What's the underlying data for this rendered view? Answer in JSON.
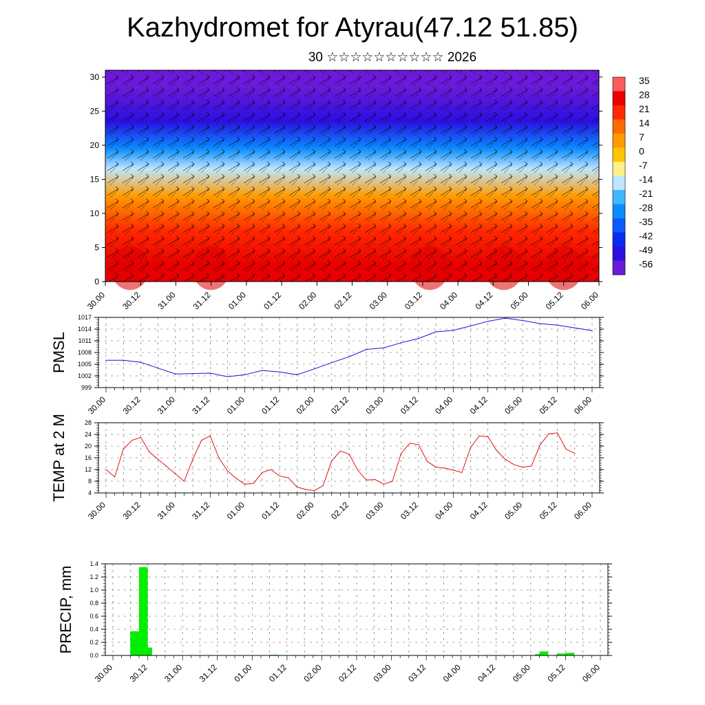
{
  "header": {
    "title": "Kazhydromet for Atyrau(47.12 51.85)",
    "subtitle": "30 ☆☆☆☆☆☆☆☆☆☆ 2026"
  },
  "time_labels": [
    "30.00",
    "30.12",
    "31.00",
    "31.12",
    "01.00",
    "01.12",
    "02.00",
    "02.12",
    "03.00",
    "03.12",
    "04.00",
    "04.12",
    "05.00",
    "05.12",
    "06.00"
  ],
  "colors": {
    "pmsl_line": "#1010e0",
    "temp_line": "#e01010",
    "precip_bar": "#00ee00",
    "grid": "#555555"
  },
  "chart_data": [
    {
      "type": "heatmap",
      "name": "cross-section",
      "y_ticks": [
        0,
        5,
        10,
        15,
        20,
        25,
        30
      ],
      "ylim": [
        0,
        31
      ],
      "colorbar": {
        "labels": [
          35,
          28,
          21,
          14,
          7,
          0,
          -7,
          -14,
          -21,
          -28,
          -35,
          -42,
          -49,
          -56
        ],
        "colors": [
          "#ff5a5a",
          "#e80000",
          "#ff2a00",
          "#ff6a00",
          "#ff9a00",
          "#ffc400",
          "#fff08a",
          "#bfe6ff",
          "#3fb6ff",
          "#0a8cff",
          "#0a5cff",
          "#0a2cf0",
          "#2a10e0",
          "#6a1ad8"
        ]
      },
      "temperature_bands": [
        {
          "ylim": [
            0,
            5
          ],
          "value": 28
        },
        {
          "ylim": [
            5,
            10
          ],
          "value": 18
        },
        {
          "ylim": [
            10,
            15
          ],
          "value": 8
        },
        {
          "ylim": [
            15,
            18
          ],
          "value": -12
        },
        {
          "ylim": [
            18,
            21
          ],
          "value": -30
        },
        {
          "ylim": [
            21,
            26
          ],
          "value": -48
        },
        {
          "ylim": [
            26,
            31
          ],
          "value": -56
        }
      ]
    },
    {
      "type": "line",
      "name": "PMSL",
      "ylabel": "PMSL",
      "y_ticks": [
        999,
        1002,
        1005,
        1008,
        1011,
        1014,
        1017
      ],
      "ylim": [
        999,
        1017
      ],
      "x_index": [
        0,
        0.5,
        1,
        1.5,
        2,
        2.5,
        3,
        3.5,
        4,
        4.5,
        5,
        5.5,
        6,
        6.5,
        7,
        7.5,
        8,
        8.5,
        9,
        9.5,
        10,
        10.5,
        11,
        11.5,
        12,
        12.5,
        13,
        13.5,
        14
      ],
      "values": [
        1006,
        1006,
        1005.5,
        1004,
        1002.5,
        1002.6,
        1002.7,
        1001.8,
        1002.3,
        1003.4,
        1003,
        1002.3,
        1003.8,
        1005.4,
        1006.9,
        1008.8,
        1009.2,
        1010.5,
        1011.6,
        1013.3,
        1013.7,
        1014.8,
        1016,
        1016.8,
        1016.2,
        1015.4,
        1015,
        1014.3,
        1013.6
      ]
    },
    {
      "type": "line",
      "name": "TEMP at 2 M",
      "ylabel": "TEMP at 2 M",
      "y_ticks": [
        4,
        8,
        12,
        16,
        20,
        24,
        28
      ],
      "ylim": [
        4,
        28
      ],
      "x_index": [
        0,
        0.25,
        0.5,
        0.75,
        1,
        1.25,
        1.5,
        1.75,
        2,
        2.25,
        2.5,
        2.75,
        3,
        3.25,
        3.5,
        3.75,
        4,
        4.25,
        4.5,
        4.75,
        5,
        5.25,
        5.5,
        5.75,
        6,
        6.25,
        6.5,
        6.75,
        7,
        7.25,
        7.5,
        7.75,
        8,
        8.25,
        8.5,
        8.75,
        9,
        9.25,
        9.5,
        9.75,
        10,
        10.25,
        10.5,
        10.75,
        11,
        11.25,
        11.5,
        11.75,
        12,
        12.25,
        12.5,
        12.75,
        13,
        13.25,
        13.5
      ],
      "values": [
        12,
        9.5,
        19,
        22,
        23,
        18,
        15.5,
        13,
        10.5,
        8,
        15.5,
        22,
        23.5,
        16,
        11.5,
        9,
        7,
        7.3,
        11,
        12,
        9.8,
        9.2,
        6,
        5.2,
        4.8,
        6.5,
        15,
        18.3,
        17.3,
        11.8,
        8.4,
        8.6,
        7,
        8,
        17.5,
        21,
        20.5,
        14.8,
        12.8,
        12.5,
        11.8,
        11,
        19.5,
        23.5,
        23.2,
        18.5,
        15.5,
        13.7,
        12.8,
        13.2,
        20.4,
        24.2,
        24.5,
        19,
        17.5
      ]
    },
    {
      "type": "bar",
      "name": "PRECIP, mm",
      "ylabel": "PRECIP, mm",
      "y_ticks": [
        0.0,
        0.2,
        0.4,
        0.6,
        0.8,
        1.0,
        1.2,
        1.4
      ],
      "ylim": [
        0,
        1.4
      ],
      "x_index": [
        0.25,
        0.375,
        0.5,
        0.625,
        0.75,
        0.875,
        1,
        2,
        3,
        4,
        4.625,
        5,
        6,
        7,
        8,
        9,
        10,
        11,
        11.875,
        12.25,
        12.375,
        12.875,
        13.125
      ],
      "values": [
        0,
        0,
        0,
        0.37,
        0.19,
        1.35,
        0.12,
        0,
        0,
        0,
        0.01,
        0,
        0,
        0,
        0,
        0,
        0,
        0,
        0,
        0.02,
        0.06,
        0.03,
        0.04
      ]
    }
  ]
}
